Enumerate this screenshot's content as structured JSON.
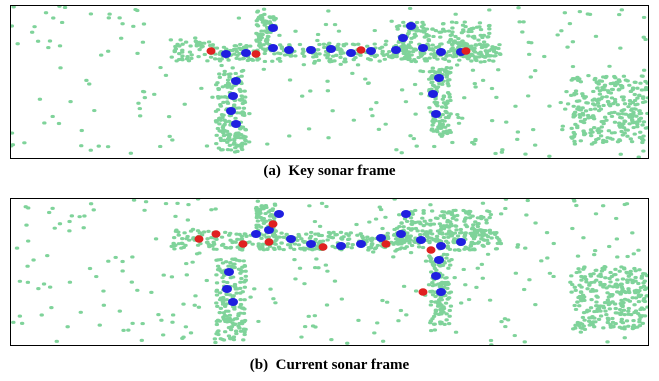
{
  "figure": {
    "panels": [
      {
        "caption": "(a)  Key sonar frame"
      },
      {
        "caption": "(b)  Current sonar frame"
      }
    ]
  }
}
